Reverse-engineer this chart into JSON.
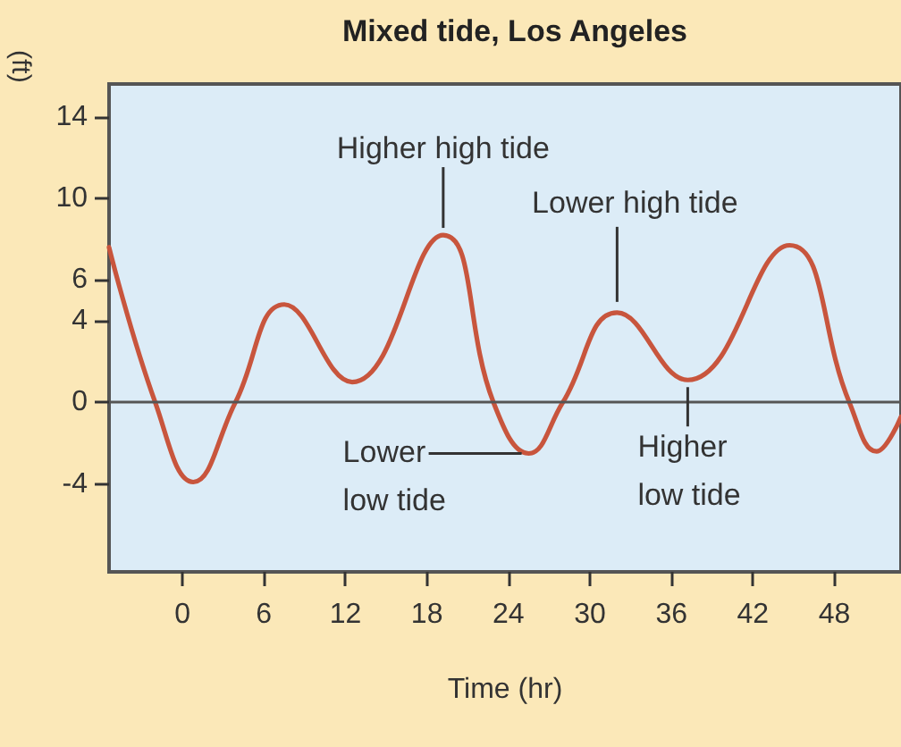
{
  "chart_data": {
    "type": "line",
    "title": "Mixed tide, Los Angeles",
    "xlabel": "Time (hr)",
    "ylabel": "(ft)",
    "x": [
      -5.4,
      -2.0,
      0.8,
      3.9,
      7.5,
      12.5,
      19.2,
      22.9,
      25.5,
      28.0,
      32.0,
      37.2,
      44.7,
      49.1,
      51.1,
      52.9
    ],
    "series": [
      {
        "color": "#c8553d",
        "values": [
          7.6,
          0.0,
          -3.9,
          0.0,
          4.8,
          1.0,
          8.2,
          0.0,
          -2.5,
          0.0,
          4.4,
          1.1,
          7.7,
          0.0,
          -2.4,
          -0.7
        ]
      }
    ],
    "xlim": [
      -5.4,
      52.9
    ],
    "xticks": [
      0,
      6,
      12,
      18,
      24,
      30,
      36,
      42,
      48
    ],
    "ylim": [
      -8.3,
      15.6
    ],
    "yticks": [
      -4,
      0,
      4,
      6,
      10,
      14
    ],
    "ref_lines": [
      {
        "axis": "y",
        "value": 0,
        "color": "#555555"
      }
    ],
    "annotations": [
      {
        "text": "Higher high tide",
        "x": 19.2,
        "y": 8.2
      },
      {
        "text": "Lower high tide",
        "x": 32.0,
        "y": 4.4
      },
      {
        "text": "Lower low tide",
        "x": 25.5,
        "y": -2.5
      },
      {
        "text": "Higher low tide",
        "x": 37.2,
        "y": 1.1
      }
    ],
    "grid": false,
    "marker": "none",
    "line_style": "solid"
  }
}
